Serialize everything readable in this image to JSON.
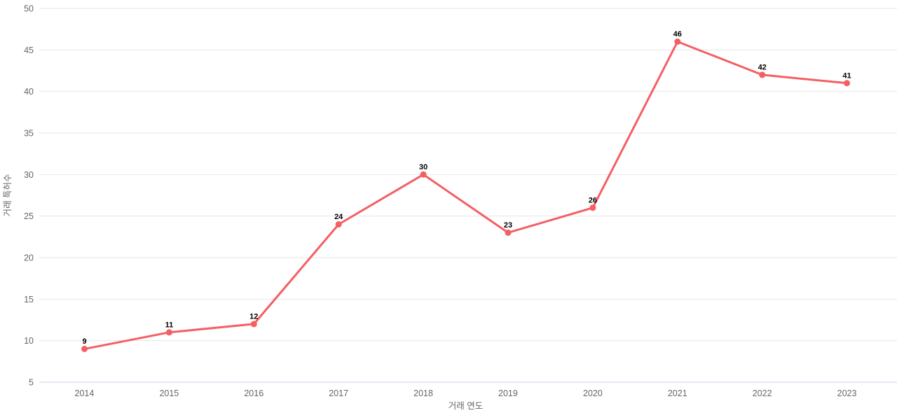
{
  "chart_data": {
    "type": "line",
    "title": "",
    "categories": [
      "2014",
      "2015",
      "2016",
      "2017",
      "2018",
      "2019",
      "2020",
      "2021",
      "2022",
      "2023"
    ],
    "series": [
      {
        "name": "거래 특허수",
        "values": [
          9,
          11,
          12,
          24,
          30,
          23,
          26,
          46,
          42,
          41
        ]
      }
    ],
    "xlabel": "거래 연도",
    "ylabel": "거래 특허수",
    "ylim": [
      5,
      50
    ],
    "ytick_step": 5,
    "yticks": [
      5,
      10,
      15,
      20,
      25,
      30,
      35,
      40,
      45,
      50
    ],
    "grid": true,
    "legend_position": "none",
    "data_labels_visible": true,
    "colors": {
      "series": "#f45f64",
      "grid_line": "#e6e6e6",
      "axis_line": "#ccd6eb",
      "tick_label": "#666666",
      "axis_title": "#666666",
      "data_label": "#000000",
      "background": "#ffffff"
    }
  }
}
